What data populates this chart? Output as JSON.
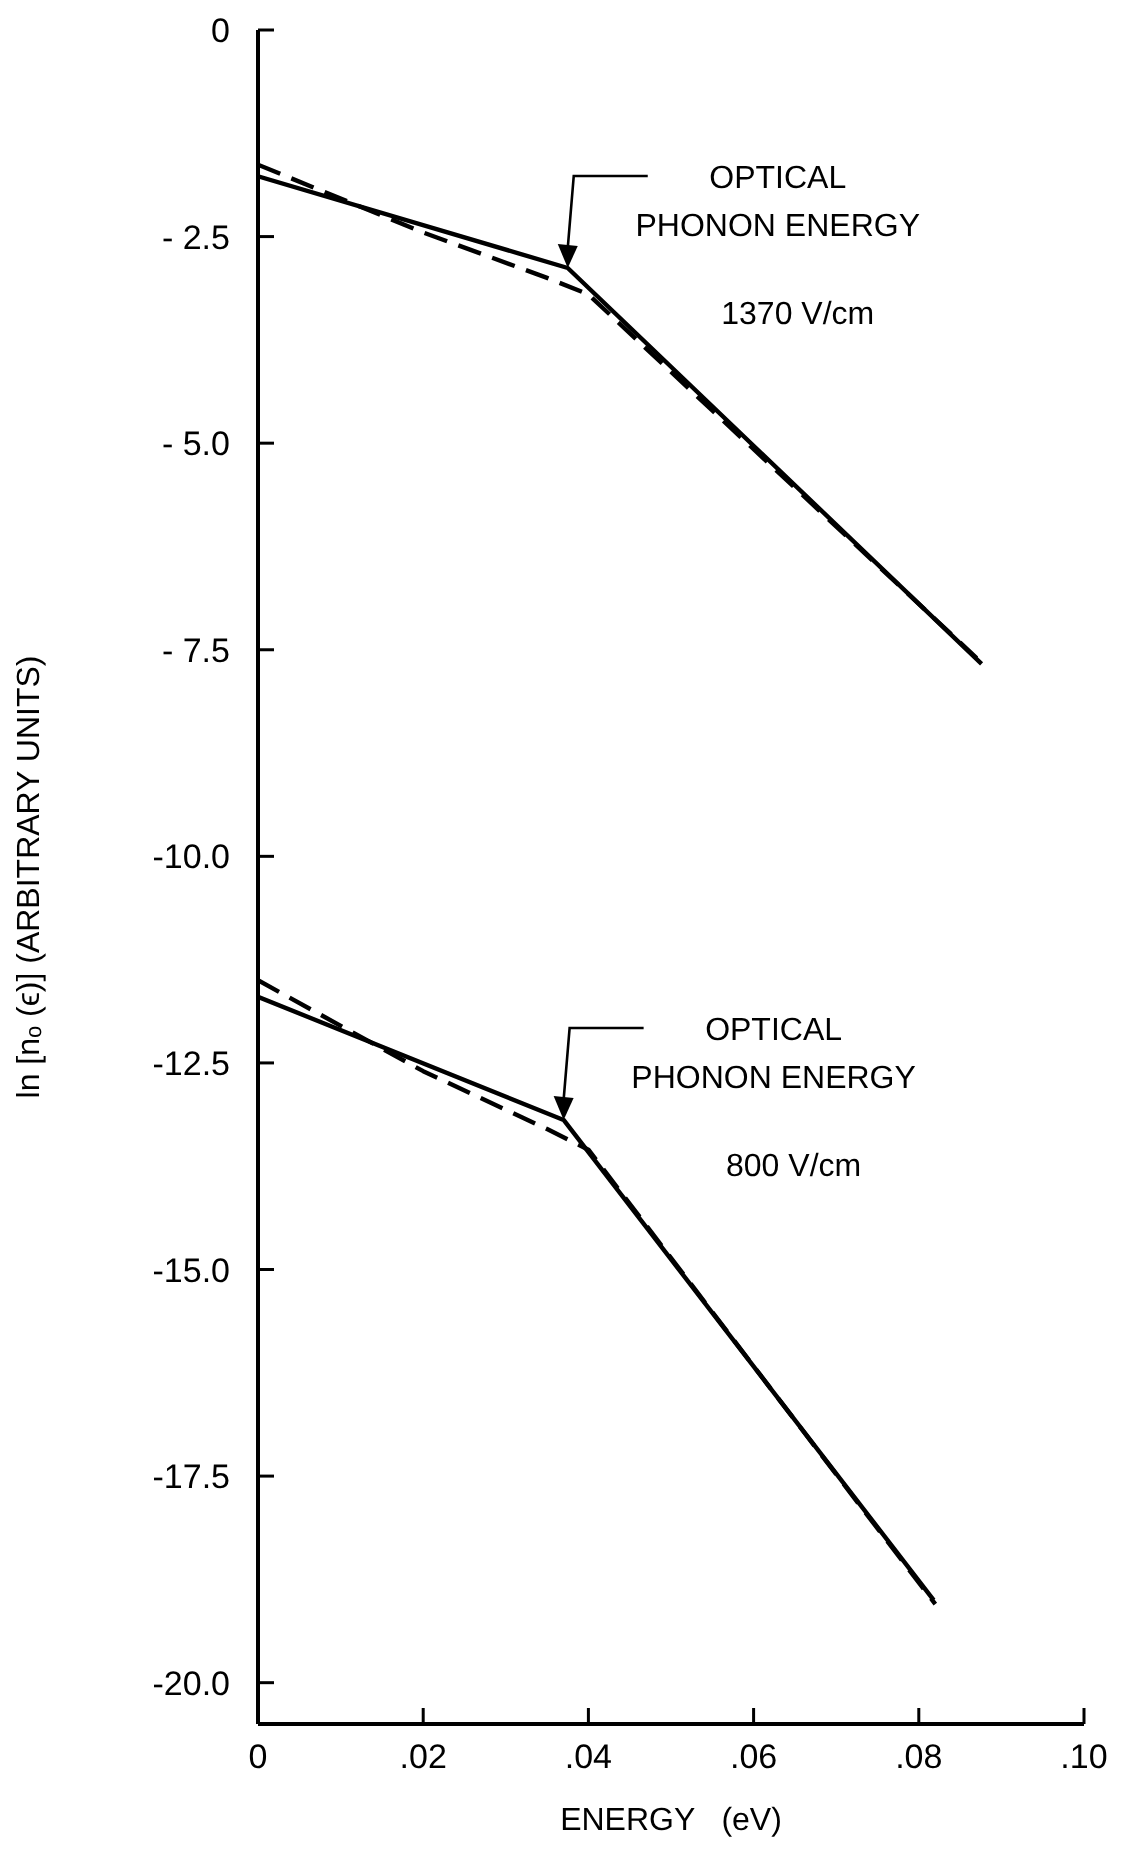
{
  "chart_data": {
    "type": "line",
    "xlabel": "ENERGY   (eV)",
    "ylabel": "ln [nₒ (ϵ)]   (ARBITRARY UNITS)",
    "xlim": [
      0,
      0.1
    ],
    "xticks": [
      0,
      {
        "value": 0.02,
        "label": ".02"
      },
      {
        "value": 0.04,
        "label": ".04"
      },
      {
        "value": 0.06,
        "label": ".06"
      },
      {
        "value": 0.08,
        "label": ".08"
      },
      {
        "value": 0.1,
        "label": ".10"
      }
    ],
    "ylim": [
      -20.5,
      0
    ],
    "yticks": [
      0,
      {
        "value": -2.5,
        "label": "- 2.5"
      },
      {
        "value": -5,
        "label": "- 5.0"
      },
      {
        "value": -7.5,
        "label": "- 7.5"
      },
      {
        "value": -10,
        "label": "-10.0"
      },
      {
        "value": -12.5,
        "label": "-12.5"
      },
      {
        "value": -15,
        "label": "-15.0"
      },
      {
        "value": -17.5,
        "label": "-17.5"
      },
      {
        "value": -20,
        "label": "-20.0"
      }
    ],
    "series": [
      {
        "color": "#000000",
        "line_style": "solid",
        "x": [
          0,
          0.0375,
          0.0876
        ],
        "values": [
          -1.77,
          -2.88,
          -7.67
        ]
      },
      {
        "color": "#000000",
        "line_style": "dashed",
        "x": [
          0,
          0.02,
          0.035,
          0.04,
          0.087
        ],
        "values": [
          -1.63,
          -2.45,
          -3.0,
          -3.2,
          -7.6
        ]
      },
      {
        "color": "#000000",
        "line_style": "solid",
        "x": [
          0,
          0.037,
          0.0818
        ],
        "values": [
          -11.7,
          -13.19,
          -19.0
        ]
      },
      {
        "color": "#000000",
        "line_style": "dashed",
        "x": [
          0,
          0.02,
          0.035,
          0.04,
          0.082
        ],
        "values": [
          -11.5,
          -12.6,
          -13.3,
          -13.55,
          -19.05
        ]
      }
    ],
    "annotations": [
      {
        "text": "OPTICAL PHONON ENERGY",
        "x": 0.0375,
        "y": -2.88
      },
      "1370 V/cm",
      {
        "text": "OPTICAL PHONON ENERGY",
        "x": 0.037,
        "y": -13.19
      },
      "800 V/cm"
    ]
  }
}
